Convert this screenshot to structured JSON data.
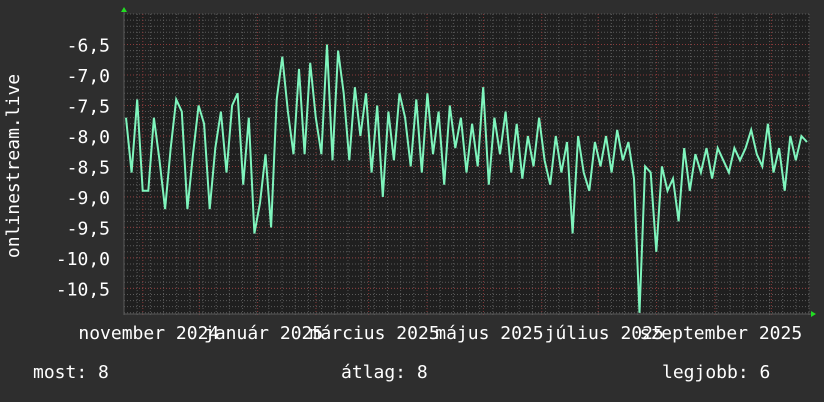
{
  "chart_data": {
    "type": "line",
    "ylabel": "onlinestream.live",
    "xlabel": "",
    "x_range": [
      "2024-10-22",
      "2025-10-21"
    ],
    "ylim": [
      -10.92,
      -6.0
    ],
    "yticks": [
      -6.5,
      -7.0,
      -7.5,
      -8.0,
      -8.5,
      -9.0,
      -9.5,
      -10.0,
      -10.5
    ],
    "ytick_labels": [
      "-6,5",
      "-7,0",
      "-7,5",
      "-8,0",
      "-8,5",
      "-9,0",
      "-9,5",
      "-10,0",
      "-10,5"
    ],
    "xticks": [
      {
        "date": "2024-11-01",
        "label": "november 2024"
      },
      {
        "date": "2025-01-01",
        "label": "január 2025"
      },
      {
        "date": "2025-03-01",
        "label": "március 2025"
      },
      {
        "date": "2025-05-01",
        "label": "május 2025"
      },
      {
        "date": "2025-07-01",
        "label": "július 2025"
      },
      {
        "date": "2025-09-01",
        "label": "szeptember 2025"
      }
    ],
    "grid": true,
    "colors": {
      "line": "#7ff5bd",
      "background": "#2e2e2e",
      "plot": "#1f1f1f",
      "major_grid": "#8a3a3a",
      "minor_grid": "#5a5a5a",
      "arrow": "#22dd22"
    },
    "values": [
      -7.7,
      -8.6,
      -7.4,
      -8.9,
      -8.9,
      -7.7,
      -8.4,
      -9.2,
      -8.2,
      -7.4,
      -7.6,
      -9.2,
      -8.3,
      -7.5,
      -7.8,
      -9.2,
      -8.2,
      -7.6,
      -8.6,
      -7.5,
      -7.3,
      -8.8,
      -7.7,
      -9.6,
      -9.1,
      -8.3,
      -9.5,
      -7.4,
      -6.7,
      -7.6,
      -8.3,
      -6.9,
      -8.3,
      -6.8,
      -7.7,
      -8.3,
      -6.5,
      -8.4,
      -6.6,
      -7.3,
      -8.4,
      -7.2,
      -8.0,
      -7.3,
      -8.6,
      -7.5,
      -9.0,
      -7.6,
      -8.4,
      -7.3,
      -7.7,
      -8.5,
      -7.4,
      -8.6,
      -7.3,
      -8.3,
      -7.6,
      -8.8,
      -7.5,
      -8.2,
      -7.7,
      -8.6,
      -7.8,
      -8.5,
      -7.2,
      -8.8,
      -7.7,
      -8.3,
      -7.6,
      -8.6,
      -7.8,
      -8.7,
      -8.0,
      -8.5,
      -7.7,
      -8.4,
      -8.8,
      -8.0,
      -8.6,
      -8.1,
      -9.6,
      -8.0,
      -8.6,
      -8.9,
      -8.1,
      -8.5,
      -8.0,
      -8.6,
      -7.9,
      -8.4,
      -8.1,
      -8.7,
      -10.9,
      -8.5,
      -8.6,
      -9.9,
      -8.5,
      -8.9,
      -8.7,
      -9.4,
      -8.2,
      -8.9,
      -8.3,
      -8.6,
      -8.2,
      -8.7,
      -8.2,
      -8.4,
      -8.6,
      -8.2,
      -8.4,
      -8.2,
      -7.9,
      -8.3,
      -8.5,
      -7.8,
      -8.6,
      -8.2,
      -8.9,
      -8.0,
      -8.4,
      -8.0,
      -8.1
    ]
  },
  "legend": {
    "current": "most: 8",
    "average": "átlag: 8",
    "best": "legjobb: 6"
  }
}
